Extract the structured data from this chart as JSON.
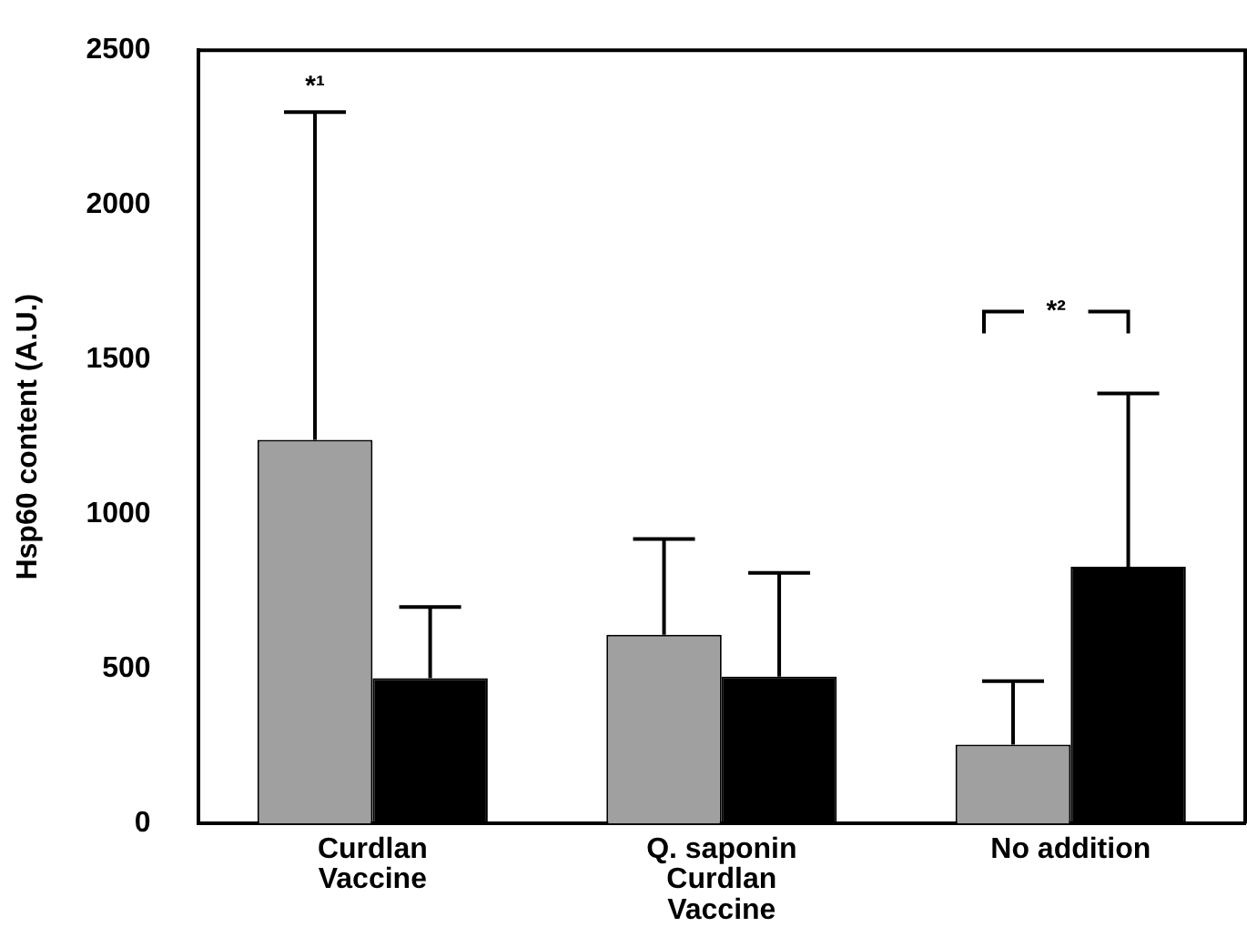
{
  "chart_data": {
    "type": "bar",
    "ylabel": "Hsp60 content (A.U.)",
    "categories": [
      "Curdlan\nVaccine",
      "Q. saponin\nCurdlan\nVaccine",
      "No addition"
    ],
    "series": [
      {
        "color": "#a0a0a0",
        "values": [
          1240,
          610,
          255
        ],
        "errors": [
          [
            1240,
            2300
          ],
          [
            610,
            920
          ],
          [
            255,
            460
          ]
        ]
      },
      {
        "color": "#000000",
        "values": [
          470,
          475,
          830
        ],
        "errors": [
          [
            470,
            700
          ],
          [
            475,
            810
          ],
          [
            830,
            1390
          ]
        ]
      }
    ],
    "ylim": [
      0,
      2500
    ],
    "yticks": [
      0,
      500,
      1000,
      1500,
      2000,
      2500
    ],
    "grid": false,
    "legend": false,
    "annotations": [
      "*¹",
      "*²"
    ]
  }
}
